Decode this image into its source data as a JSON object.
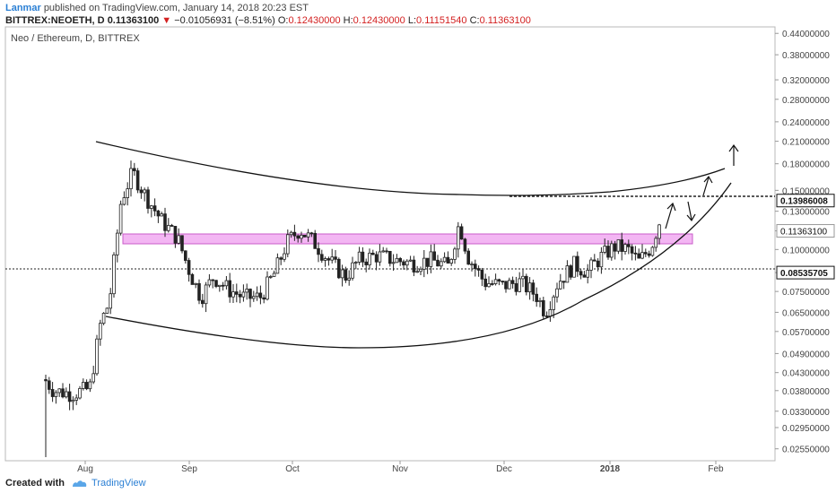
{
  "header": {
    "line1": {
      "author": "Lanmar",
      "text": "published on TradingView.com, January 14, 2018 20:23 EST"
    },
    "line2": {
      "symbol": "BITTREX:NEOETH, D",
      "price": "0.11363100",
      "arrow": "▼",
      "change": "−0.01056931 (−8.51%)",
      "o_label": "O:",
      "o": "0.12430000",
      "h_label": "H:",
      "h": "0.12430000",
      "l_label": "L:",
      "l": "0.11151540",
      "c_label": "C:",
      "c": "0.11363100"
    }
  },
  "chart_data": {
    "type": "candlestick",
    "title": "Neo / Ethereum, D, BITTREX",
    "y_scale": "log",
    "ylim": [
      0.0235,
      0.46
    ],
    "y_ticks": [
      "0.44000000",
      "0.38000000",
      "0.32000000",
      "0.28000000",
      "0.24000000",
      "0.21000000",
      "0.18000000",
      "0.15000000",
      "0.13000000",
      "0.11363100",
      "0.10000000",
      "0.08535705",
      "0.07500000",
      "0.06500000",
      "0.05700000",
      "0.04900000",
      "0.04300000",
      "0.03800000",
      "0.03300000",
      "0.02950000",
      "0.02550000"
    ],
    "x_labels": [
      "Aug",
      "Sep",
      "Oct",
      "Nov",
      "Dec",
      "2018",
      "Feb"
    ],
    "price_labels": [
      {
        "value": "0.13986008",
        "style": "dark"
      },
      {
        "value": "0.11363100",
        "style": "light"
      },
      {
        "value": "0.08535705",
        "style": "dark"
      }
    ],
    "colors": {
      "up": "#ffffff",
      "down": "#222222",
      "zone": "#f3b6f3",
      "zone_border": "#c95cc9",
      "line": "#111111"
    }
  },
  "footer": {
    "created_with": "Created with",
    "brand": "TradingView"
  }
}
